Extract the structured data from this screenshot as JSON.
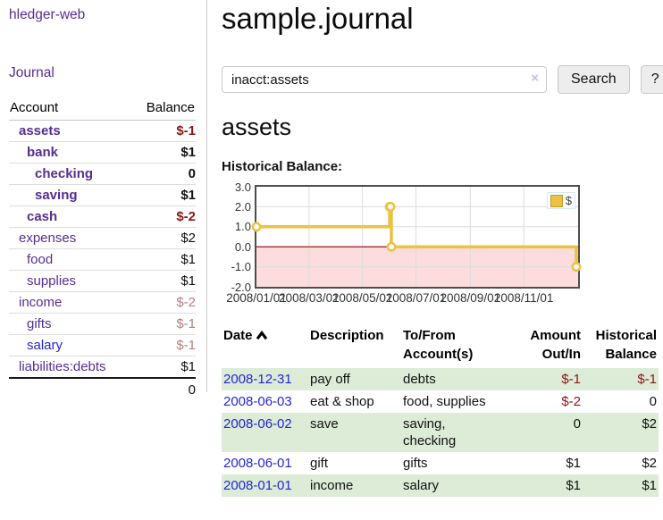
{
  "app": {
    "title": "hledger-web"
  },
  "sidebar": {
    "journal_link": "Journal",
    "headers": {
      "account": "Account",
      "balance": "Balance"
    },
    "accounts": [
      {
        "name": "assets",
        "balance": "$-1",
        "indent": 1,
        "bold": true,
        "neg": "strong"
      },
      {
        "name": "bank",
        "balance": "$1",
        "indent": 2,
        "bold": true
      },
      {
        "name": "checking",
        "balance": "0",
        "indent": 3,
        "bold": true
      },
      {
        "name": "saving",
        "balance": "$1",
        "indent": 3,
        "bold": true
      },
      {
        "name": "cash",
        "balance": "$-2",
        "indent": 2,
        "bold": true,
        "neg": "strong"
      },
      {
        "name": "expenses",
        "balance": "$2",
        "indent": 1
      },
      {
        "name": "food",
        "balance": "$1",
        "indent": 2
      },
      {
        "name": "supplies",
        "balance": "$1",
        "indent": 2
      },
      {
        "name": "income",
        "balance": "$-2",
        "indent": 1,
        "neg": "soft"
      },
      {
        "name": "gifts",
        "balance": "$-1",
        "indent": 2,
        "neg": "soft"
      },
      {
        "name": "salary",
        "balance": "$-1",
        "indent": 2,
        "neg": "soft",
        "link": "blue"
      },
      {
        "name": "liabilities:debts",
        "balance": "$1",
        "indent": 1
      }
    ],
    "total": "0"
  },
  "header": {
    "title": "sample.journal"
  },
  "search": {
    "value": "inacct:assets",
    "clear_icon": "×",
    "button": "Search",
    "help_button": "?"
  },
  "account_page": {
    "title": "assets",
    "chart_label": "Historical Balance:"
  },
  "chart_data": {
    "type": "line",
    "step": true,
    "title": "Historical Balance:",
    "x_range": [
      "2008-01-01",
      "2008-12-31"
    ],
    "ylim": [
      -2,
      3
    ],
    "y_ticks": [
      3.0,
      2.0,
      1.0,
      0.0,
      -1.0,
      -2.0
    ],
    "x_tick_labels": [
      "2008/01/01",
      "2008/03/01",
      "2008/05/01",
      "2008/07/01",
      "2008/09/01",
      "2008/11/01"
    ],
    "series": [
      {
        "name": "$",
        "color": "#edc240",
        "points": [
          {
            "date": "2008-01-01",
            "value": 1
          },
          {
            "date": "2008-06-01",
            "value": 2
          },
          {
            "date": "2008-06-02",
            "value": 2
          },
          {
            "date": "2008-06-03",
            "value": 0
          },
          {
            "date": "2008-12-31",
            "value": -1
          }
        ]
      }
    ],
    "legend": {
      "label": "$",
      "position": "top-right"
    },
    "grid": true,
    "negative_region_color": "#fcdcdc",
    "zero_line_color": "#8b0000"
  },
  "register": {
    "headers": {
      "date": "Date",
      "description": "Description",
      "accounts": "To/From Account(s)",
      "amount": "Amount Out/In",
      "balance": "Historical Balance"
    },
    "rows": [
      {
        "date": "2008-12-31",
        "description": "pay off",
        "accounts": "debts",
        "amount": "$-1",
        "balance": "$-1",
        "amount_negative": true,
        "balance_negative": true,
        "shaded": true
      },
      {
        "date": "2008-06-03",
        "description": "eat & shop",
        "accounts": "food, supplies",
        "amount": "$-2",
        "balance": "0",
        "amount_negative": true
      },
      {
        "date": "2008-06-02",
        "description": "save",
        "accounts": "saving,\nchecking",
        "amount": "0",
        "balance": "$2",
        "shaded": true
      },
      {
        "date": "2008-06-01",
        "description": "gift",
        "accounts": "gifts",
        "amount": "$1",
        "balance": "$2"
      },
      {
        "date": "2008-01-01",
        "description": "income",
        "accounts": "salary",
        "amount": "$1",
        "balance": "$1",
        "shaded": true
      }
    ]
  }
}
